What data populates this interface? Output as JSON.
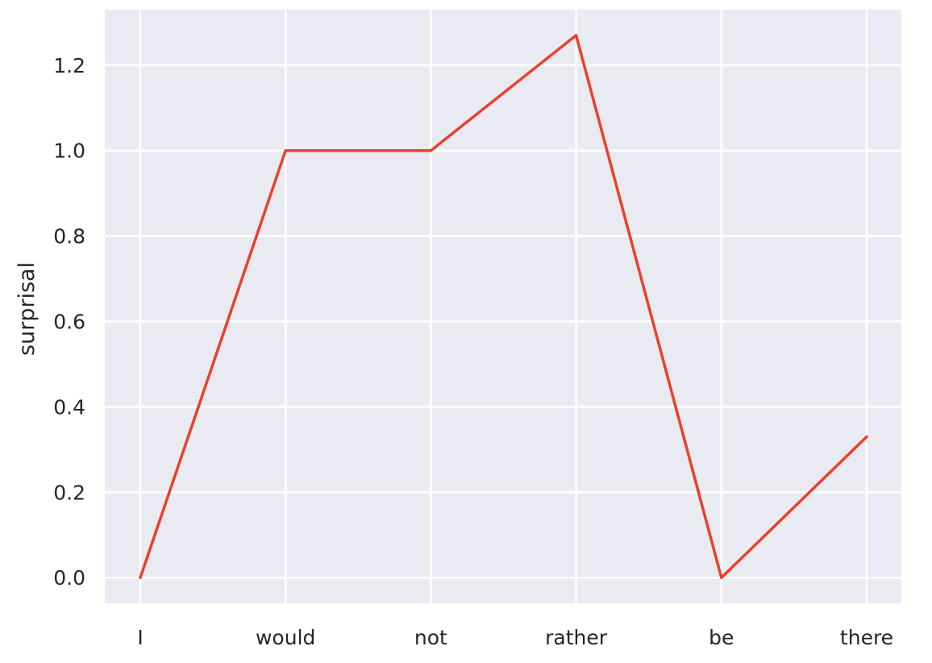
{
  "chart_data": {
    "type": "line",
    "categories": [
      "I",
      "would",
      "not",
      "rather",
      "be",
      "there"
    ],
    "series": [
      {
        "values": [
          0.0,
          1.0,
          1.0,
          1.27,
          0.0,
          0.33
        ]
      }
    ],
    "xlabel": "",
    "ylabel": "surprisal",
    "ylim": [
      -0.06,
      1.33
    ],
    "yticks": [
      "0.0",
      "0.2",
      "0.4",
      "0.6",
      "0.8",
      "1.0",
      "1.2"
    ],
    "grid": true,
    "colors": {
      "background": "#eaeaf2",
      "grid": "#ffffff",
      "line": "#e8412c"
    }
  }
}
